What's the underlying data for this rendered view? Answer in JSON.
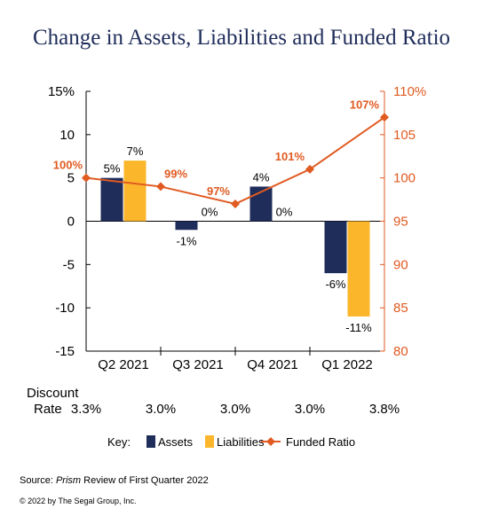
{
  "chart_data": {
    "type": "bar",
    "title": "Change in Assets, Liabilities and Funded Ratio",
    "categories": [
      "Q2 2021",
      "Q3 2021",
      "Q4 2021",
      "Q1 2022"
    ],
    "y_left": {
      "min": -15,
      "max": 15,
      "step": 5,
      "ticks": [
        "15%",
        "10",
        "5",
        "0",
        "-5",
        "-10",
        "-15"
      ]
    },
    "y_right": {
      "min": 80,
      "max": 110,
      "step": 5,
      "ticks": [
        "110%",
        "105",
        "100",
        "95",
        "90",
        "85",
        "80"
      ]
    },
    "series": [
      {
        "name": "Assets",
        "color": "#1f2d5a",
        "values": [
          5,
          -1,
          4,
          -6
        ],
        "labels": [
          "5%",
          "-1%",
          "4%",
          "-6%"
        ]
      },
      {
        "name": "Liabilities",
        "color": "#fbb62b",
        "values": [
          7,
          0,
          0,
          -11
        ],
        "labels": [
          "7%",
          "0%",
          "0%",
          "-11%"
        ]
      }
    ],
    "line_series": {
      "name": "Funded Ratio",
      "color": "#e05a21",
      "values": [
        100,
        99,
        97,
        101,
        107
      ],
      "labels": [
        "100%",
        "99%",
        "97%",
        "101%",
        "107%"
      ]
    },
    "discount_rate": {
      "label_line1": "Discount",
      "label_line2": "Rate",
      "values": [
        "3.3%",
        "3.0%",
        "3.0%",
        "3.0%",
        "3.8%"
      ]
    },
    "legend": {
      "key_label": "Key:",
      "items": [
        {
          "name": "Assets",
          "kind": "swatch",
          "color": "#1f2d5a"
        },
        {
          "name": "Liabilities",
          "kind": "swatch",
          "color": "#fbb62b"
        },
        {
          "name": "Funded Ratio",
          "kind": "line-marker",
          "color": "#e05a21"
        }
      ]
    }
  },
  "source": {
    "prefix": "Source: ",
    "italic": "Prism",
    "suffix": " Review of First Quarter 2022"
  },
  "copyright": "© 2022 by The Segal Group, Inc."
}
